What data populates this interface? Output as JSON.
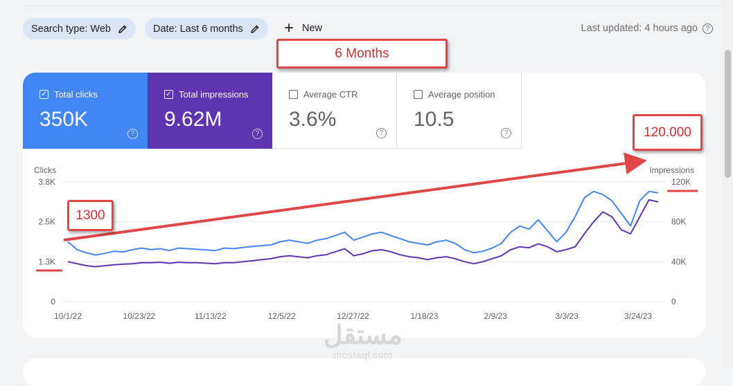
{
  "filters": {
    "search_type": "Search type: Web",
    "date": "Date: Last 6 months",
    "new_label": "New"
  },
  "last_updated": "Last updated: 4 hours ago",
  "callouts": {
    "months": "6 Months",
    "top_right": "120.000",
    "left": "1300"
  },
  "metrics": [
    {
      "label": "Total clicks",
      "value": "350K",
      "checked": true,
      "color": "#4285f4"
    },
    {
      "label": "Total impressions",
      "value": "9.62M",
      "checked": true,
      "color": "#5e35b1"
    },
    {
      "label": "Average CTR",
      "value": "3.6%",
      "checked": false
    },
    {
      "label": "Average position",
      "value": "10.5",
      "checked": false
    }
  ],
  "chart_data": {
    "type": "line",
    "y_left_label": "Clicks",
    "y_right_label": "Impressions",
    "y_left_ticks": [
      "3.8K",
      "2.5K",
      "1.3K",
      "0"
    ],
    "y_right_ticks": [
      "120K",
      "80K",
      "40K",
      "0"
    ],
    "y_left_range": [
      0,
      3800
    ],
    "y_right_range": [
      0,
      120000
    ],
    "x_tick_labels": [
      "10/1/22",
      "10/23/22",
      "11/13/22",
      "12/5/22",
      "12/27/22",
      "1/18/23",
      "2/9/23",
      "3/3/23",
      "3/24/23"
    ],
    "grid": true,
    "series": [
      {
        "name": "Clicks",
        "axis": "left",
        "color": "#4285f4",
        "values": [
          1900,
          1650,
          1550,
          1480,
          1530,
          1600,
          1580,
          1650,
          1700,
          1650,
          1680,
          1620,
          1700,
          1680,
          1660,
          1640,
          1620,
          1700,
          1680,
          1720,
          1750,
          1780,
          1800,
          1900,
          1950,
          1900,
          1850,
          1950,
          2000,
          2100,
          2200,
          1950,
          2050,
          2150,
          2200,
          2100,
          2000,
          1900,
          1850,
          1800,
          1900,
          1950,
          1850,
          1650,
          1550,
          1600,
          1700,
          1850,
          2200,
          2400,
          2300,
          2600,
          2250,
          1900,
          2200,
          2700,
          3300,
          3500,
          3400,
          3200,
          2800,
          2400,
          3200,
          3500,
          3450
        ]
      },
      {
        "name": "Impressions",
        "axis": "right",
        "color": "#5e35b1",
        "values": [
          40000,
          38000,
          36000,
          35000,
          36000,
          37000,
          37500,
          38000,
          39000,
          39000,
          39500,
          38500,
          39500,
          39000,
          39000,
          38500,
          38000,
          39000,
          39000,
          40000,
          41000,
          42000,
          43000,
          45000,
          46000,
          45000,
          44000,
          46000,
          47000,
          50000,
          53000,
          46000,
          48000,
          51000,
          52000,
          50000,
          47000,
          45000,
          44000,
          42000,
          44000,
          45000,
          43000,
          40000,
          38000,
          40000,
          43000,
          46000,
          52000,
          55000,
          54000,
          58000,
          55000,
          50000,
          52000,
          55000,
          68000,
          80000,
          90000,
          85000,
          72000,
          68000,
          85000,
          102000,
          100000
        ]
      }
    ]
  }
}
